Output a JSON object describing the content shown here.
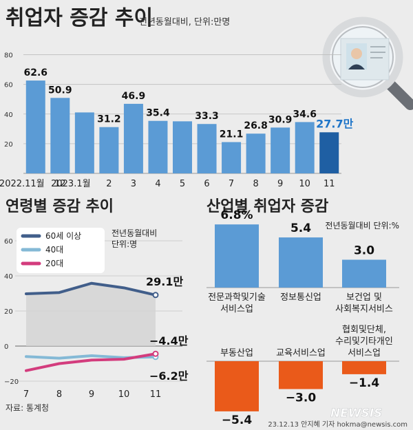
{
  "header": {
    "title": "취업자 증감 추이",
    "subtitle": "전년동월대비, 단위:만명"
  },
  "chart_data": [
    {
      "type": "bar",
      "name": "monthly",
      "categories": [
        "2022.11월",
        "12",
        "2023.1월",
        "2",
        "3",
        "4",
        "5",
        "6",
        "7",
        "8",
        "9",
        "10",
        "11"
      ],
      "values": [
        62.6,
        50.9,
        41.1,
        31.2,
        46.9,
        35.4,
        35.1,
        33.3,
        21.1,
        26.8,
        30.9,
        34.6,
        27.7
      ],
      "labels": [
        "62.6",
        "50.9",
        "",
        "31.2",
        "46.9",
        "35.4",
        "",
        "33.3",
        "21.1",
        "26.8",
        "30.9",
        "34.6",
        "27.7만"
      ],
      "highlight_index": 12,
      "colors": {
        "bar": "#5b9bd5",
        "highlight": "#1f5fa3",
        "label": "#111111",
        "highlight_label": "#1f75c8"
      },
      "yticks": [
        20,
        40,
        60,
        80
      ],
      "ylim": [
        0,
        90
      ]
    },
    {
      "type": "line",
      "name": "age",
      "title": "연령별 증감 추이",
      "note": [
        "전년동월대비",
        "단위:명"
      ],
      "x": [
        "7",
        "8",
        "9",
        "10",
        "11"
      ],
      "yticks": [
        -20,
        0,
        20,
        40,
        60
      ],
      "ylim": [
        -20,
        65
      ],
      "series": [
        {
          "name": "60세 이상",
          "values": [
            29.8,
            30.5,
            35.8,
            33.2,
            29.1
          ],
          "color": "#415e8a"
        },
        {
          "name": "40대",
          "values": [
            -6.0,
            -6.9,
            -5.5,
            -6.6,
            -6.2
          ],
          "color": "#84b9d6"
        },
        {
          "name": "20대",
          "values": [
            -14.0,
            -10.0,
            -8.0,
            -7.5,
            -4.4
          ],
          "color": "#d33c7d"
        }
      ],
      "end_labels": [
        "29.1만",
        "−6.2만",
        "−4.4만"
      ]
    },
    {
      "type": "bar",
      "name": "industry",
      "title": "산업별 취업자 증감",
      "note": "전년동월대비 단위:%",
      "positive": [
        {
          "label": [
            "전문과학및기술",
            "서비스업"
          ],
          "value": 6.8,
          "text": "6.8%"
        },
        {
          "label": [
            "정보통신업"
          ],
          "value": 5.4,
          "text": "5.4"
        },
        {
          "label": [
            "보건업 및",
            "사회복지서비스"
          ],
          "value": 3.0,
          "text": "3.0"
        }
      ],
      "negative": [
        {
          "label": [
            "부동산업"
          ],
          "value": -5.4,
          "text": "−5.4"
        },
        {
          "label": [
            "교육서비스업"
          ],
          "value": -3.0,
          "text": "−3.0"
        },
        {
          "label": [
            "협회및단체,",
            "수리및기타개인",
            "서비스업"
          ],
          "value": -1.4,
          "text": "−1.4"
        }
      ],
      "colors": {
        "positive": "#5b9bd5",
        "negative": "#ea5a1a"
      }
    }
  ],
  "footer": {
    "source": "자료: 통계청",
    "credit": "23.12.13 안지혜 기자 hokma@newsis.com",
    "logo": "NEWSIS"
  }
}
